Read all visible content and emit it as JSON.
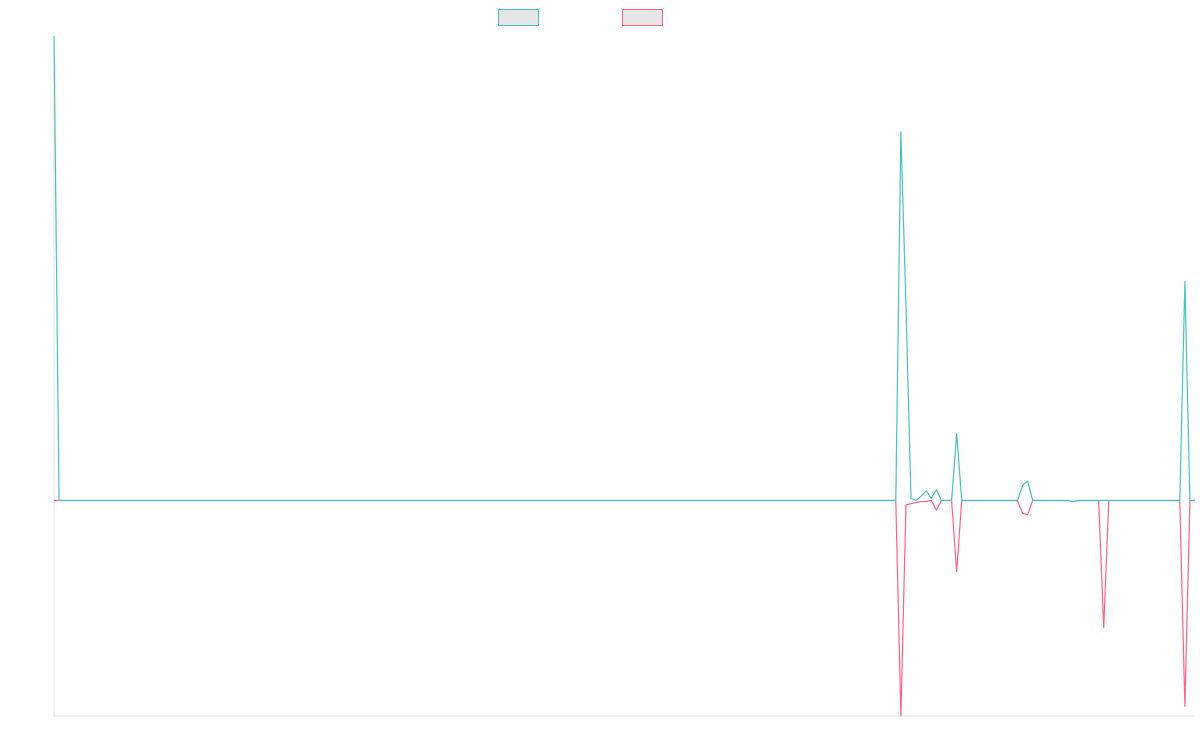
{
  "chart_data": {
    "type": "line",
    "title": "",
    "xlabel": "",
    "ylabel": "",
    "x_count": 226,
    "ylim": [
      -1.0,
      2.155
    ],
    "baseline": 0,
    "grid": false,
    "legend_position": "top-center",
    "series": [
      {
        "key": "positive",
        "name": "",
        "color": "#4bc0c0",
        "legend_fill": "#e6e6e6",
        "points": [
          [
            0,
            2.155
          ],
          [
            1,
            0.0
          ],
          [
            166,
            0.0
          ],
          [
            167,
            1.71
          ],
          [
            168,
            0.9
          ],
          [
            169,
            0.01
          ],
          [
            170,
            0.0
          ],
          [
            171,
            0.02
          ],
          [
            172,
            0.045
          ],
          [
            173,
            0.01
          ],
          [
            174,
            0.05
          ],
          [
            175,
            0.0
          ],
          [
            177,
            0.0
          ],
          [
            178,
            0.31
          ],
          [
            179,
            0.0
          ],
          [
            190,
            0.0
          ],
          [
            191,
            0.07
          ],
          [
            192,
            0.09
          ],
          [
            193,
            0.0
          ],
          [
            200,
            0.0
          ],
          [
            201,
            -0.005
          ],
          [
            202,
            0.0
          ],
          [
            222,
            0.0
          ],
          [
            223,
            1.015
          ],
          [
            224,
            0.0
          ],
          [
            225,
            0.0
          ]
        ]
      },
      {
        "key": "negative",
        "name": "",
        "color": "#ff6384",
        "legend_fill": "#e6e6e6",
        "points": [
          [
            0,
            0.0
          ],
          [
            166,
            0.0
          ],
          [
            167,
            -1.0
          ],
          [
            168,
            -0.02
          ],
          [
            169,
            -0.015
          ],
          [
            170,
            -0.01
          ],
          [
            171,
            -0.005
          ],
          [
            172,
            -0.005
          ],
          [
            173,
            0.0
          ],
          [
            174,
            -0.045
          ],
          [
            175,
            0.0
          ],
          [
            177,
            0.0
          ],
          [
            178,
            -0.33
          ],
          [
            179,
            0.0
          ],
          [
            190,
            0.0
          ],
          [
            191,
            -0.06
          ],
          [
            192,
            -0.065
          ],
          [
            193,
            0.0
          ],
          [
            200,
            0.0
          ],
          [
            201,
            -0.005
          ],
          [
            202,
            0.0
          ],
          [
            206,
            0.0
          ],
          [
            207,
            -0.59
          ],
          [
            208,
            0.0
          ],
          [
            222,
            0.0
          ],
          [
            223,
            -0.955
          ],
          [
            224,
            0.0
          ],
          [
            225,
            0.0
          ]
        ]
      }
    ]
  }
}
